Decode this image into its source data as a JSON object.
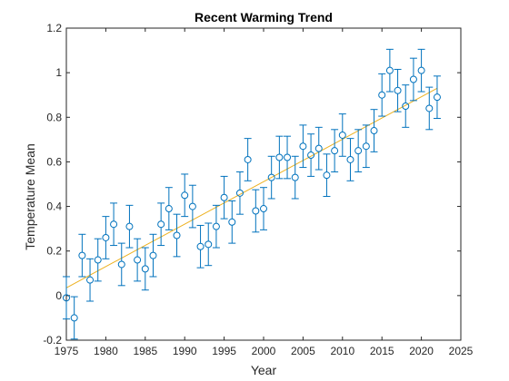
{
  "chart_data": {
    "type": "scatter",
    "title": "Recent Warming Trend",
    "xlabel": "Year",
    "ylabel": "Temperature Mean",
    "xlim": [
      1975,
      2025
    ],
    "ylim": [
      -0.2,
      1.2
    ],
    "xticks": [
      1975,
      1980,
      1985,
      1990,
      1995,
      2000,
      2005,
      2010,
      2015,
      2020,
      2025
    ],
    "yticks": [
      -0.2,
      0,
      0.2,
      0.4,
      0.6,
      0.8,
      1,
      1.2
    ],
    "ytick_labels": [
      "-0.2",
      "0",
      "0.2",
      "0.4",
      "0.6",
      "0.8",
      "1",
      "1.2"
    ],
    "grid": false,
    "series": [
      {
        "x": [
          1975,
          1976,
          1977,
          1978,
          1979,
          1980,
          1981,
          1982,
          1983,
          1984,
          1985,
          1986,
          1987,
          1988,
          1989,
          1990,
          1991,
          1992,
          1993,
          1994,
          1995,
          1996,
          1997,
          1998,
          1999,
          2000,
          2001,
          2002,
          2003,
          2004,
          2005,
          2006,
          2007,
          2008,
          2009,
          2010,
          2011,
          2012,
          2013,
          2014,
          2015,
          2016,
          2017,
          2018,
          2019,
          2020,
          2021,
          2022
        ],
        "y": [
          -0.01,
          -0.1,
          0.18,
          0.07,
          0.16,
          0.26,
          0.32,
          0.14,
          0.31,
          0.16,
          0.12,
          0.18,
          0.32,
          0.39,
          0.27,
          0.45,
          0.4,
          0.22,
          0.23,
          0.31,
          0.44,
          0.33,
          0.46,
          0.61,
          0.38,
          0.39,
          0.53,
          0.62,
          0.62,
          0.53,
          0.67,
          0.63,
          0.66,
          0.54,
          0.65,
          0.72,
          0.61,
          0.65,
          0.67,
          0.74,
          0.9,
          1.01,
          0.92,
          0.85,
          0.97,
          1.01,
          0.84,
          0.89
        ],
        "error": 0.095,
        "color": "#0072BD",
        "marker": "circle"
      }
    ],
    "trendline": {
      "x": [
        1975,
        2022
      ],
      "y": [
        0.035,
        0.93
      ],
      "color": "#EDB120"
    }
  }
}
